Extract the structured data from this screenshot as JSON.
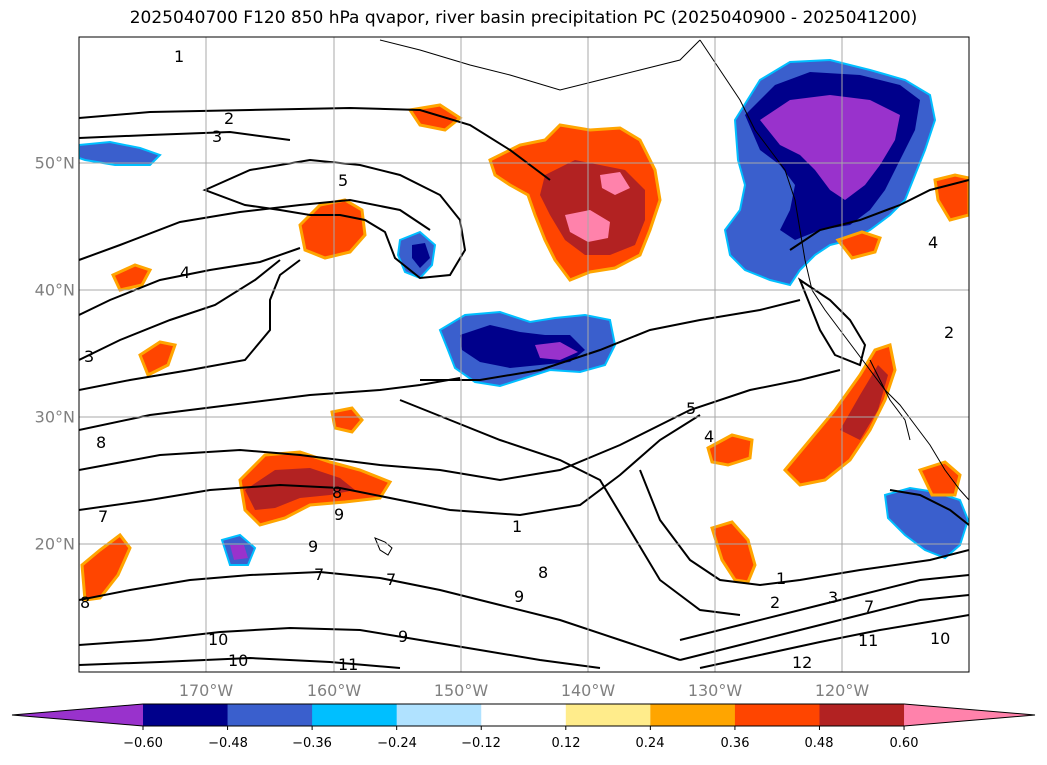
{
  "title": "2025040700 F120 850 hPa qvapor, river basin precipitation PC (2025040900 - 2025041200)",
  "latitude_labels": [
    "50°N",
    "40°N",
    "30°N",
    "20°N"
  ],
  "longitude_labels": [
    "170°W",
    "160°W",
    "150°W",
    "140°W",
    "130°W",
    "120°W"
  ],
  "contour_labels": [
    "1",
    "2",
    "3",
    "5",
    "4",
    "3",
    "8",
    "7",
    "9",
    "8",
    "7",
    "7",
    "9",
    "8",
    "10",
    "10",
    "11",
    "9",
    "1",
    "5",
    "4",
    "9",
    "2",
    "3",
    "8",
    "7",
    "11",
    "12",
    "10",
    "1",
    "4",
    "2"
  ],
  "colorbar": {
    "tick_labels": [
      "−0.60",
      "−0.48",
      "−0.36",
      "−0.24",
      "−0.12",
      "0.12",
      "0.24",
      "0.36",
      "0.48",
      "0.60"
    ],
    "colors": [
      "#9932cc",
      "#00008b",
      "#3a5fcd",
      "#00bfff",
      "#b0e2ff",
      "#ffffff",
      "#ffec8b",
      "#ffa500",
      "#ff4500",
      "#b22222",
      "#ff82ab"
    ]
  },
  "colors": {
    "purple": "#9932cc",
    "navy": "#00008b",
    "blue": "#3a5fcd",
    "cyan": "#00bfff",
    "lightblue": "#b0e2ff",
    "yellow": "#ffec8b",
    "orange": "#ffa500",
    "redorange": "#ff4500",
    "firebrick": "#b22222",
    "pink": "#ff82ab"
  }
}
